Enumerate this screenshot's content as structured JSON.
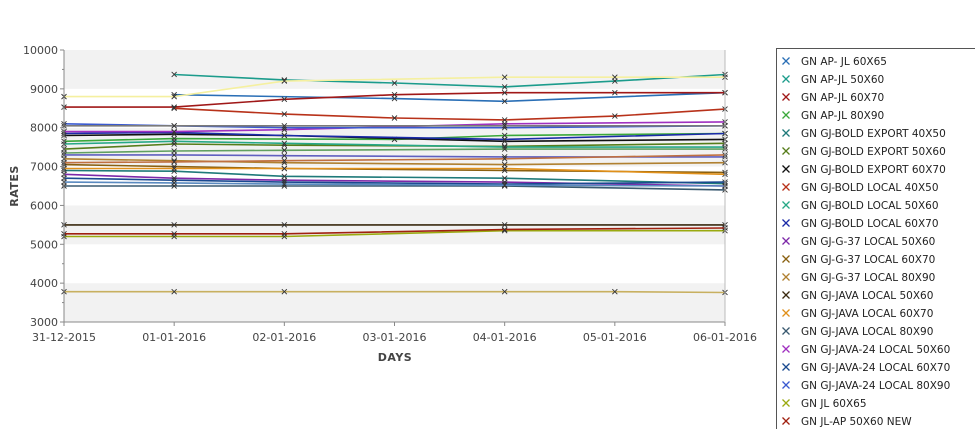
{
  "chart_data": {
    "type": "line",
    "xlabel": "DAYS",
    "ylabel": "RATES",
    "ylim": [
      3000,
      10000
    ],
    "y_ticks": [
      3000,
      4000,
      5000,
      6000,
      7000,
      8000,
      9000,
      10000
    ],
    "x_tick_labels": [
      "31-12-2015",
      "01-01-2016",
      "02-01-2016",
      "03-01-2016",
      "04-01-2016",
      "05-01-2016",
      "06-01-2016"
    ],
    "grid": "alternating horizontal bands",
    "legend_position": "right",
    "legend_colors": [
      "#2a6fb6",
      "#1c9c8c",
      "#a01818",
      "#3aa83a",
      "#1f7a7a",
      "#567d1a",
      "#111111",
      "#b8321a",
      "#27a886",
      "#1a2aa8",
      "#7d28a8",
      "#8a6010",
      "#b08030",
      "#3a2a10",
      "#e0901a",
      "#3a5a70",
      "#a030c0",
      "#1a4a90",
      "#3a5ad0",
      "#9aaa10",
      "#a02010"
    ],
    "series": [
      {
        "name": "GN AP- JL 60X65",
        "color": "#2a6fb6",
        "x": [
          "01-01-2016",
          "03-01-2016",
          "04-01-2016",
          "06-01-2016"
        ],
        "values": [
          8850,
          8750,
          8680,
          8900
        ]
      },
      {
        "name": "GN AP-JL 50X60",
        "color": "#1c9c8c",
        "x": [
          "01-01-2016",
          "02-01-2016",
          "03-01-2016",
          "04-01-2016",
          "05-01-2016",
          "06-01-2016"
        ],
        "values": [
          9370,
          9230,
          9150,
          9050,
          9200,
          9370
        ]
      },
      {
        "name": "GN AP-JL 60X70",
        "color": "#a01818",
        "x": [
          "31-12-2015",
          "01-01-2016",
          "02-01-2016",
          "03-01-2016",
          "04-01-2016",
          "05-01-2016",
          "06-01-2016"
        ],
        "values": [
          8530,
          8530,
          8730,
          8850,
          8900,
          8900,
          8900
        ]
      },
      {
        "name": "GN AP-JL 80X90",
        "color": "#3aa83a",
        "x": [
          "31-12-2015",
          "01-01-2016",
          "03-01-2016",
          "04-01-2016",
          "06-01-2016"
        ],
        "values": [
          7650,
          7720,
          7700,
          7800,
          7850
        ]
      },
      {
        "name": "GN GJ-BOLD EXPORT 40X50",
        "color": "#1f7a7a",
        "x": [
          "31-12-2015",
          "01-01-2016",
          "02-01-2016",
          "04-01-2016",
          "06-01-2016"
        ],
        "values": [
          6900,
          6880,
          6750,
          6700,
          6560
        ]
      },
      {
        "name": "GN GJ-BOLD EXPORT 50X60",
        "color": "#567d1a",
        "x": [
          "31-12-2015",
          "01-01-2016",
          "02-01-2016",
          "04-01-2016",
          "06-01-2016"
        ],
        "values": [
          7450,
          7580,
          7550,
          7520,
          7600
        ]
      },
      {
        "name": "GN GJ-BOLD EXPORT 60X70",
        "color": "#111111",
        "x": [
          "31-12-2015",
          "01-01-2016",
          "02-01-2016",
          "04-01-2016",
          "06-01-2016"
        ],
        "values": [
          7800,
          7830,
          7800,
          7650,
          7700
        ]
      },
      {
        "name": "GN GJ-BOLD LOCAL 40X50",
        "color": "#b8321a",
        "x": [
          "01-01-2016",
          "02-01-2016",
          "03-01-2016",
          "04-01-2016",
          "05-01-2016",
          "06-01-2016"
        ],
        "values": [
          8500,
          8350,
          8250,
          8200,
          8300,
          8480
        ]
      },
      {
        "name": "GN GJ-BOLD LOCAL 50X60",
        "color": "#27a886",
        "x": [
          "31-12-2015",
          "01-01-2016",
          "02-01-2016",
          "04-01-2016",
          "06-01-2016"
        ],
        "values": [
          7580,
          7650,
          7600,
          7500,
          7500
        ]
      },
      {
        "name": "GN GJ-BOLD LOCAL 60X70",
        "color": "#1a2aa8",
        "x": [
          "31-12-2015",
          "01-01-2016",
          "02-01-2016",
          "04-01-2016",
          "06-01-2016"
        ],
        "values": [
          7850,
          7880,
          7800,
          7700,
          7850
        ]
      },
      {
        "name": "GN GJ-G-37 LOCAL 50X60",
        "color": "#7d28a8",
        "x": [
          "31-12-2015",
          "01-01-2016",
          "02-01-2016",
          "04-01-2016",
          "06-01-2016"
        ],
        "values": [
          6800,
          6700,
          6650,
          6600,
          6500
        ]
      },
      {
        "name": "GN GJ-G-37 LOCAL 60X70",
        "color": "#8a6010",
        "x": [
          "31-12-2015",
          "01-01-2016",
          "02-01-2016",
          "04-01-2016",
          "06-01-2016"
        ],
        "values": [
          7050,
          7000,
          6950,
          6900,
          6850
        ]
      },
      {
        "name": "GN GJ-G-37 LOCAL 80X90",
        "color": "#b08030",
        "x": [
          "31-12-2015",
          "01-01-2016",
          "02-01-2016",
          "04-01-2016",
          "06-01-2016"
        ],
        "values": [
          7200,
          7150,
          7100,
          7050,
          7100
        ]
      },
      {
        "name": "GN GJ-JAVA LOCAL 50X60",
        "color": "#3a2a10",
        "x": [
          "31-12-2015",
          "01-01-2016",
          "02-01-2016",
          "04-01-2016",
          "06-01-2016"
        ],
        "values": [
          5500,
          5500,
          5500,
          5500,
          5500
        ]
      },
      {
        "name": "GN GJ-JAVA LOCAL 60X70",
        "color": "#e0901a",
        "x": [
          "31-12-2015",
          "01-01-2016",
          "02-01-2016",
          "04-01-2016",
          "06-01-2016"
        ],
        "values": [
          6950,
          6950,
          6950,
          6950,
          6800
        ]
      },
      {
        "name": "GN GJ-JAVA LOCAL 80X90",
        "color": "#3a5a70",
        "x": [
          "31-12-2015",
          "01-01-2016",
          "02-01-2016",
          "04-01-2016",
          "06-01-2016"
        ],
        "values": [
          6500,
          6500,
          6500,
          6500,
          6400
        ]
      },
      {
        "name": "GN GJ-JAVA-24 LOCAL 50X60",
        "color": "#a030c0",
        "x": [
          "31-12-2015",
          "01-01-2016",
          "02-01-2016",
          "04-01-2016",
          "06-01-2016"
        ],
        "values": [
          7900,
          7900,
          7950,
          8100,
          8150
        ]
      },
      {
        "name": "GN GJ-JAVA-24 LOCAL 60X70",
        "color": "#1a4a90",
        "x": [
          "31-12-2015",
          "01-01-2016",
          "02-01-2016",
          "04-01-2016",
          "06-01-2016"
        ],
        "values": [
          6700,
          6650,
          6600,
          6550,
          6600
        ]
      },
      {
        "name": "GN GJ-JAVA-24 LOCAL 80X90",
        "color": "#3a5ad0",
        "x": [
          "31-12-2015",
          "01-01-2016",
          "02-01-2016",
          "04-01-2016",
          "06-01-2016"
        ],
        "values": [
          8100,
          8050,
          8000,
          8000,
          8050
        ]
      },
      {
        "name": "GN JL 60X65",
        "color": "#9aaa10",
        "x": [
          "31-12-2015",
          "01-01-2016",
          "02-01-2016",
          "04-01-2016",
          "06-01-2016"
        ],
        "values": [
          5200,
          5200,
          5200,
          5350,
          5350
        ]
      },
      {
        "name": "GN JL-AP 50X60 NEW",
        "color": "#a02010",
        "x": [
          "31-12-2015",
          "01-01-2016",
          "02-01-2016",
          "04-01-2016",
          "06-01-2016"
        ],
        "values": [
          5270,
          5270,
          5270,
          5380,
          5420
        ]
      },
      {
        "name": "",
        "color": "#f5f0a0",
        "x": [
          "31-12-2015",
          "01-01-2016",
          "02-01-2016",
          "04-01-2016",
          "05-01-2016",
          "06-01-2016"
        ],
        "values": [
          8800,
          8800,
          9200,
          9300,
          9300,
          9300
        ]
      },
      {
        "name": "",
        "color": "#c8b060",
        "x": [
          "31-12-2015",
          "01-01-2016",
          "02-01-2016",
          "04-01-2016",
          "05-01-2016",
          "06-01-2016"
        ],
        "values": [
          3780,
          3780,
          3780,
          3780,
          3780,
          3760
        ]
      },
      {
        "name": "",
        "color": "#5a8ac0",
        "x": [
          "31-12-2015",
          "01-01-2016",
          "02-01-2016",
          "04-01-2016",
          "06-01-2016"
        ],
        "values": [
          6600,
          6580,
          6550,
          6520,
          6500
        ]
      },
      {
        "name": "",
        "color": "#60a060",
        "x": [
          "31-12-2015",
          "01-01-2016",
          "02-01-2016",
          "04-01-2016",
          "06-01-2016"
        ],
        "values": [
          7350,
          7400,
          7420,
          7450,
          7450
        ]
      },
      {
        "name": "",
        "color": "#7a7a7a",
        "x": [
          "31-12-2015",
          "01-01-2016",
          "02-01-2016",
          "04-01-2016",
          "06-01-2016"
        ],
        "values": [
          8050,
          8050,
          8050,
          8050,
          8050
        ]
      },
      {
        "name": "",
        "color": "#6060c0",
        "x": [
          "31-12-2015",
          "01-01-2016",
          "02-01-2016",
          "04-01-2016",
          "06-01-2016"
        ],
        "values": [
          7300,
          7300,
          7280,
          7250,
          7250
        ]
      },
      {
        "name": "",
        "color": "#c07040",
        "x": [
          "31-12-2015",
          "01-01-2016",
          "02-01-2016",
          "04-01-2016",
          "06-01-2016"
        ],
        "values": [
          7100,
          7120,
          7150,
          7200,
          7300
        ]
      }
    ]
  }
}
